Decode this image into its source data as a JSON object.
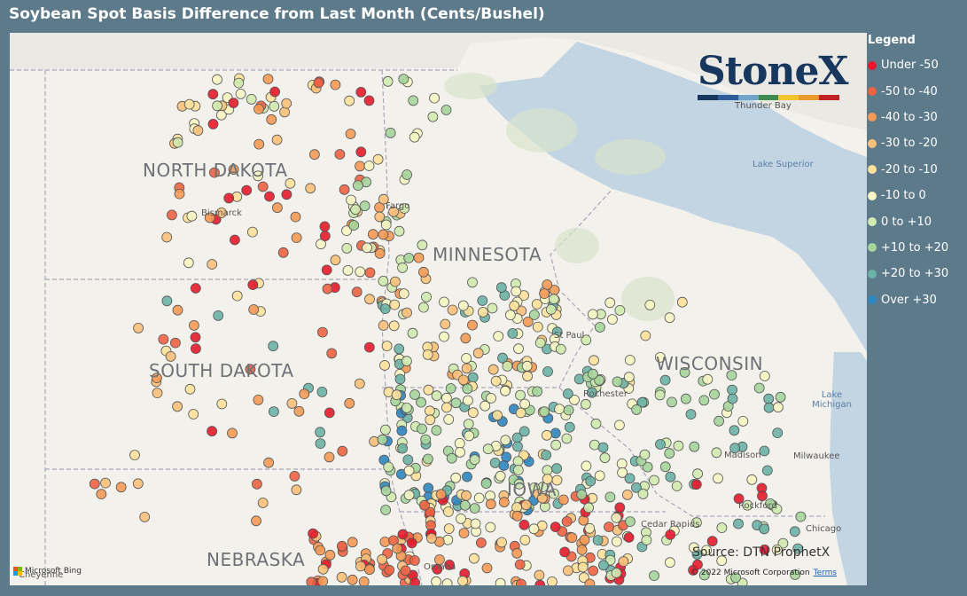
{
  "title": "Soybean Spot Basis Difference from Last Month (Cents/Bushel)",
  "legend": {
    "title": "Legend",
    "items": [
      {
        "label": "Under -50",
        "color": "#e41a2c"
      },
      {
        "label": "-50 to -40",
        "color": "#ee6344"
      },
      {
        "label": "-40 to -30",
        "color": "#f59a56"
      },
      {
        "label": "-30 to -20",
        "color": "#f9c07a"
      },
      {
        "label": "-20 to -10",
        "color": "#fde19b"
      },
      {
        "label": "-10 to 0",
        "color": "#f6f5c3"
      },
      {
        "label": "0 to +10",
        "color": "#d1eab0"
      },
      {
        "label": "+10 to +20",
        "color": "#a6d59b"
      },
      {
        "label": "+20 to +30",
        "color": "#6bb3a6"
      },
      {
        "label": "Over +30",
        "color": "#2f86c0"
      }
    ]
  },
  "logo": {
    "text": "StoneX",
    "tm": "™",
    "bar_colors": [
      "#17375e",
      "#2e5f9a",
      "#6fa5c9",
      "#3d8b4f",
      "#f2c230",
      "#e99a2c",
      "#c42127"
    ]
  },
  "map": {
    "states": {
      "north_dakota": "NORTH DAKOTA",
      "south_dakota": "SOUTH DAKOTA",
      "minnesota": "MINNESOTA",
      "wisconsin": "WISCONSIN",
      "iowa": "IOWA",
      "nebraska": "NEBRASKA"
    },
    "cities": {
      "bismarck": "Bismarck",
      "fargo": "Fargo",
      "st_paul": "St Paul",
      "rochester": "Rochester",
      "thunder_bay": "Thunder Bay",
      "madison": "Madison",
      "milwaukee": "Milwaukee",
      "rockford": "Rockford",
      "chicago": "Chicago",
      "cedar_rapids": "Cedar Rapids",
      "omaha": "Omaha",
      "cheyenne": "Cheyenne"
    },
    "water": {
      "lake_superior": "Lake Superior",
      "lake_michigan": "Lake Michigan"
    },
    "source": "Source: DTN ProphetX",
    "copyright": "© 2022 Microsoft Corporation",
    "terms": "Terms",
    "bing": "Microsoft Bing"
  }
}
